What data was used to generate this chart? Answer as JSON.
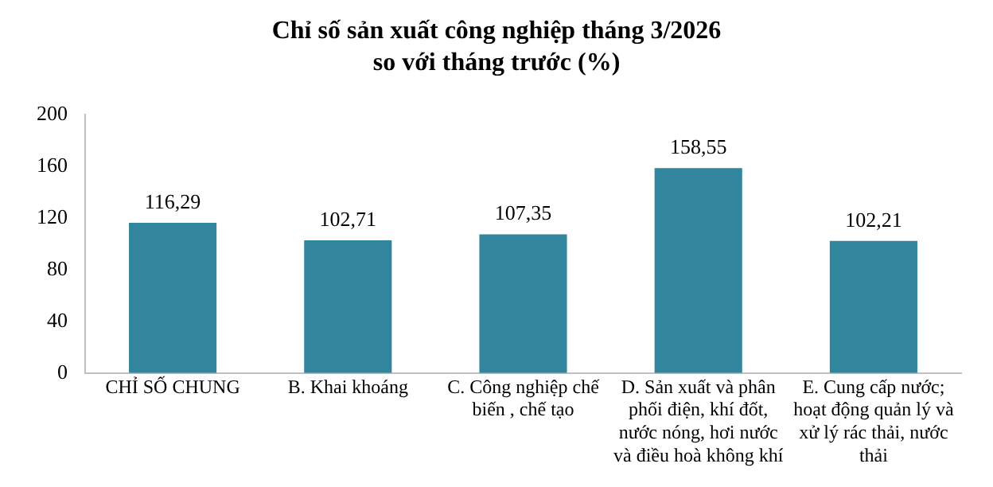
{
  "chart_data": {
    "type": "bar",
    "title": "Chỉ số sản xuất công nghiệp tháng 3/2026\nso với tháng trước (%)",
    "categories": [
      "CHỈ SỐ CHUNG",
      "B. Khai khoáng",
      "C. Công nghiệp chế biến , chế tạo",
      "D. Sản xuất và phân phối điện, khí đốt, nước nóng, hơi nước và điều hoà không khí",
      "E. Cung cấp nước; hoạt động quản lý và xử lý rác thải, nước thải"
    ],
    "values": [
      116.29,
      102.71,
      107.35,
      158.55,
      102.21
    ],
    "color": "#31859c",
    "ylim": [
      0,
      200
    ],
    "yticks": [
      0,
      40,
      80,
      120,
      160,
      200
    ],
    "value_labels": [
      "116,29",
      "102,71",
      "107,35",
      "158,55",
      "102,21"
    ],
    "grid": false,
    "legend": false
  }
}
